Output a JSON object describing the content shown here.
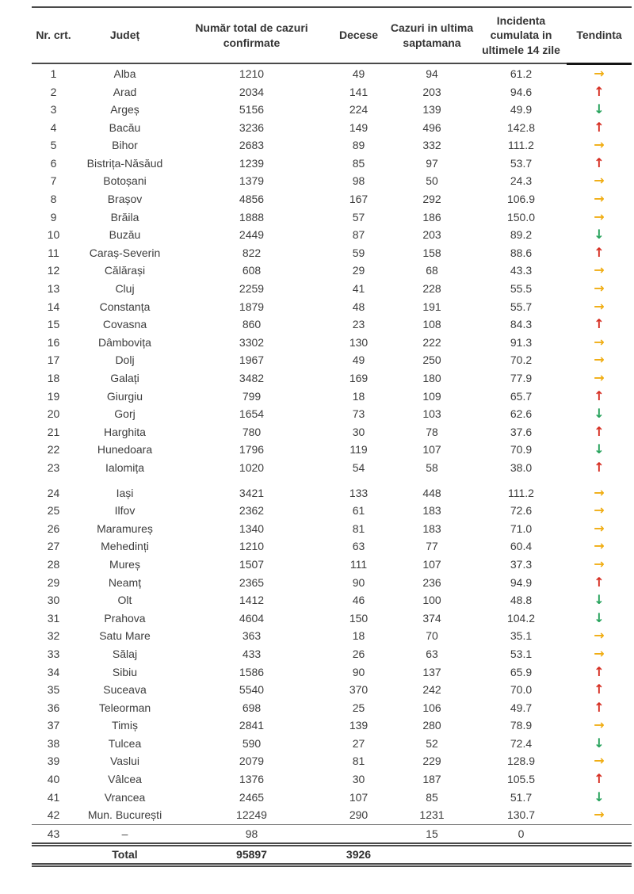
{
  "table": {
    "columns": [
      "Nr. crt.",
      "Județ",
      "Număr total de cazuri confirmate",
      "Decese",
      "Cazuri in ultima saptamana",
      "Incidenta cumulata in ultimele 14 zile",
      "Tendinta"
    ],
    "rows": [
      {
        "nr": "1",
        "judet": "Alba",
        "cazuri": "1210",
        "decese": "49",
        "ultima": "94",
        "incidenta": "61.2",
        "trend": "right"
      },
      {
        "nr": "2",
        "judet": "Arad",
        "cazuri": "2034",
        "decese": "141",
        "ultima": "203",
        "incidenta": "94.6",
        "trend": "up"
      },
      {
        "nr": "3",
        "judet": "Argeș",
        "cazuri": "5156",
        "decese": "224",
        "ultima": "139",
        "incidenta": "49.9",
        "trend": "down"
      },
      {
        "nr": "4",
        "judet": "Bacău",
        "cazuri": "3236",
        "decese": "149",
        "ultima": "496",
        "incidenta": "142.8",
        "trend": "up"
      },
      {
        "nr": "5",
        "judet": "Bihor",
        "cazuri": "2683",
        "decese": "89",
        "ultima": "332",
        "incidenta": "111.2",
        "trend": "right"
      },
      {
        "nr": "6",
        "judet": "Bistrița-Năsăud",
        "cazuri": "1239",
        "decese": "85",
        "ultima": "97",
        "incidenta": "53.7",
        "trend": "up"
      },
      {
        "nr": "7",
        "judet": "Botoșani",
        "cazuri": "1379",
        "decese": "98",
        "ultima": "50",
        "incidenta": "24.3",
        "trend": "right"
      },
      {
        "nr": "8",
        "judet": "Brașov",
        "cazuri": "4856",
        "decese": "167",
        "ultima": "292",
        "incidenta": "106.9",
        "trend": "right"
      },
      {
        "nr": "9",
        "judet": "Brăila",
        "cazuri": "1888",
        "decese": "57",
        "ultima": "186",
        "incidenta": "150.0",
        "trend": "right"
      },
      {
        "nr": "10",
        "judet": "Buzău",
        "cazuri": "2449",
        "decese": "87",
        "ultima": "203",
        "incidenta": "89.2",
        "trend": "down"
      },
      {
        "nr": "11",
        "judet": "Caraș-Severin",
        "cazuri": "822",
        "decese": "59",
        "ultima": "158",
        "incidenta": "88.6",
        "trend": "up"
      },
      {
        "nr": "12",
        "judet": "Călărași",
        "cazuri": "608",
        "decese": "29",
        "ultima": "68",
        "incidenta": "43.3",
        "trend": "right"
      },
      {
        "nr": "13",
        "judet": "Cluj",
        "cazuri": "2259",
        "decese": "41",
        "ultima": "228",
        "incidenta": "55.5",
        "trend": "right"
      },
      {
        "nr": "14",
        "judet": "Constanța",
        "cazuri": "1879",
        "decese": "48",
        "ultima": "191",
        "incidenta": "55.7",
        "trend": "right"
      },
      {
        "nr": "15",
        "judet": "Covasna",
        "cazuri": "860",
        "decese": "23",
        "ultima": "108",
        "incidenta": "84.3",
        "trend": "up"
      },
      {
        "nr": "16",
        "judet": "Dâmbovița",
        "cazuri": "3302",
        "decese": "130",
        "ultima": "222",
        "incidenta": "91.3",
        "trend": "right"
      },
      {
        "nr": "17",
        "judet": "Dolj",
        "cazuri": "1967",
        "decese": "49",
        "ultima": "250",
        "incidenta": "70.2",
        "trend": "right"
      },
      {
        "nr": "18",
        "judet": "Galați",
        "cazuri": "3482",
        "decese": "169",
        "ultima": "180",
        "incidenta": "77.9",
        "trend": "right"
      },
      {
        "nr": "19",
        "judet": "Giurgiu",
        "cazuri": "799",
        "decese": "18",
        "ultima": "109",
        "incidenta": "65.7",
        "trend": "up"
      },
      {
        "nr": "20",
        "judet": "Gorj",
        "cazuri": "1654",
        "decese": "73",
        "ultima": "103",
        "incidenta": "62.6",
        "trend": "down"
      },
      {
        "nr": "21",
        "judet": "Harghita",
        "cazuri": "780",
        "decese": "30",
        "ultima": "78",
        "incidenta": "37.6",
        "trend": "up"
      },
      {
        "nr": "22",
        "judet": "Hunedoara",
        "cazuri": "1796",
        "decese": "119",
        "ultima": "107",
        "incidenta": "70.9",
        "trend": "down"
      },
      {
        "nr": "23",
        "judet": "Ialomița",
        "cazuri": "1020",
        "decese": "54",
        "ultima": "58",
        "incidenta": "38.0",
        "trend": "up"
      },
      {
        "nr": "24",
        "judet": "Iași",
        "cazuri": "3421",
        "decese": "133",
        "ultima": "448",
        "incidenta": "111.2",
        "trend": "right",
        "gap": true
      },
      {
        "nr": "25",
        "judet": "Ilfov",
        "cazuri": "2362",
        "decese": "61",
        "ultima": "183",
        "incidenta": "72.6",
        "trend": "right"
      },
      {
        "nr": "26",
        "judet": "Maramureș",
        "cazuri": "1340",
        "decese": "81",
        "ultima": "183",
        "incidenta": "71.0",
        "trend": "right"
      },
      {
        "nr": "27",
        "judet": "Mehedinți",
        "cazuri": "1210",
        "decese": "63",
        "ultima": "77",
        "incidenta": "60.4",
        "trend": "right"
      },
      {
        "nr": "28",
        "judet": "Mureș",
        "cazuri": "1507",
        "decese": "111",
        "ultima": "107",
        "incidenta": "37.3",
        "trend": "right"
      },
      {
        "nr": "29",
        "judet": "Neamț",
        "cazuri": "2365",
        "decese": "90",
        "ultima": "236",
        "incidenta": "94.9",
        "trend": "up"
      },
      {
        "nr": "30",
        "judet": "Olt",
        "cazuri": "1412",
        "decese": "46",
        "ultima": "100",
        "incidenta": "48.8",
        "trend": "down"
      },
      {
        "nr": "31",
        "judet": "Prahova",
        "cazuri": "4604",
        "decese": "150",
        "ultima": "374",
        "incidenta": "104.2",
        "trend": "down"
      },
      {
        "nr": "32",
        "judet": "Satu Mare",
        "cazuri": "363",
        "decese": "18",
        "ultima": "70",
        "incidenta": "35.1",
        "trend": "right"
      },
      {
        "nr": "33",
        "judet": "Sălaj",
        "cazuri": "433",
        "decese": "26",
        "ultima": "63",
        "incidenta": "53.1",
        "trend": "right"
      },
      {
        "nr": "34",
        "judet": "Sibiu",
        "cazuri": "1586",
        "decese": "90",
        "ultima": "137",
        "incidenta": "65.9",
        "trend": "up"
      },
      {
        "nr": "35",
        "judet": "Suceava",
        "cazuri": "5540",
        "decese": "370",
        "ultima": "242",
        "incidenta": "70.0",
        "trend": "up"
      },
      {
        "nr": "36",
        "judet": "Teleorman",
        "cazuri": "698",
        "decese": "25",
        "ultima": "106",
        "incidenta": "49.7",
        "trend": "up"
      },
      {
        "nr": "37",
        "judet": "Timiș",
        "cazuri": "2841",
        "decese": "139",
        "ultima": "280",
        "incidenta": "78.9",
        "trend": "right"
      },
      {
        "nr": "38",
        "judet": "Tulcea",
        "cazuri": "590",
        "decese": "27",
        "ultima": "52",
        "incidenta": "72.4",
        "trend": "down"
      },
      {
        "nr": "39",
        "judet": "Vaslui",
        "cazuri": "2079",
        "decese": "81",
        "ultima": "229",
        "incidenta": "128.9",
        "trend": "right"
      },
      {
        "nr": "40",
        "judet": "Vâlcea",
        "cazuri": "1376",
        "decese": "30",
        "ultima": "187",
        "incidenta": "105.5",
        "trend": "up"
      },
      {
        "nr": "41",
        "judet": "Vrancea",
        "cazuri": "2465",
        "decese": "107",
        "ultima": "85",
        "incidenta": "51.7",
        "trend": "down"
      },
      {
        "nr": "42",
        "judet": "Mun. București",
        "cazuri": "12249",
        "decese": "290",
        "ultima": "1231",
        "incidenta": "130.7",
        "trend": "right"
      }
    ],
    "extra_row": {
      "nr": "43",
      "judet": "–",
      "cazuri": "98",
      "decese": "",
      "ultima": "15",
      "incidenta": "0",
      "trend": ""
    },
    "total_row": {
      "nr": "",
      "judet": "Total",
      "cazuri": "95897",
      "decese": "3926",
      "ultima": "",
      "incidenta": "",
      "trend": ""
    }
  },
  "trend_glyphs": {
    "up": "↑",
    "down": "↓",
    "right": "→"
  },
  "trend_colors": {
    "up": "#d62e22",
    "down": "#27a35c",
    "right": "#f0ad13"
  }
}
